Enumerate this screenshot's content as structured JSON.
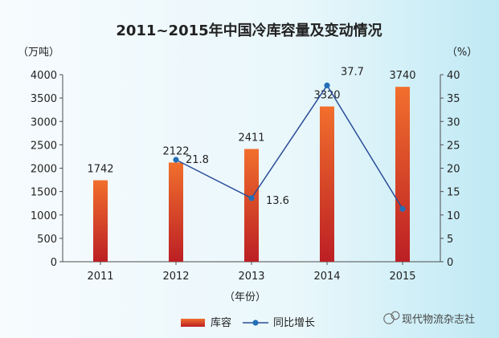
{
  "chart_data": {
    "type": "bar",
    "title": "2011~2015年中国冷库容量及变动情况",
    "categories": [
      "2011",
      "2012",
      "2013",
      "2014",
      "2015"
    ],
    "xlabel": "（年份）",
    "ylabel_left": "（万吨）",
    "ylabel_right": "（%）",
    "ylim_left": [
      0,
      4000
    ],
    "ylim_right": [
      0,
      40
    ],
    "y_ticks_left": [
      "0",
      "500",
      "1000",
      "1500",
      "2000",
      "2500",
      "3000",
      "3500",
      "4000"
    ],
    "y_ticks_right": [
      "0",
      "5",
      "10",
      "15",
      "20",
      "25",
      "30",
      "35",
      "40"
    ],
    "series": [
      {
        "name": "库容",
        "type": "bar",
        "axis": "left",
        "values": [
          1742,
          2122,
          2411,
          3320,
          3740
        ],
        "labels": [
          "1742",
          "2122",
          "2411",
          "3320",
          "3740"
        ]
      },
      {
        "name": "同比增长",
        "type": "line",
        "axis": "right",
        "values": [
          null,
          21.8,
          13.6,
          37.7,
          11.3
        ],
        "labels": [
          "",
          "21.8",
          "13.6",
          "37.7",
          ""
        ]
      }
    ],
    "legend": [
      "库容",
      "同比增长"
    ],
    "legend_placement": "bottom-center",
    "watermark": "现代物流杂志社",
    "colors": {
      "background_start": "#f7fbfe",
      "background_end": "#bfe9f4",
      "bar_top": "#f16f2d",
      "bar_bottom": "#bc1f24",
      "line": "#2a4e9a",
      "point": "#236fb7",
      "axis": "#4d4d4d",
      "text": "#222222",
      "grid": "#7a7a7a"
    }
  }
}
